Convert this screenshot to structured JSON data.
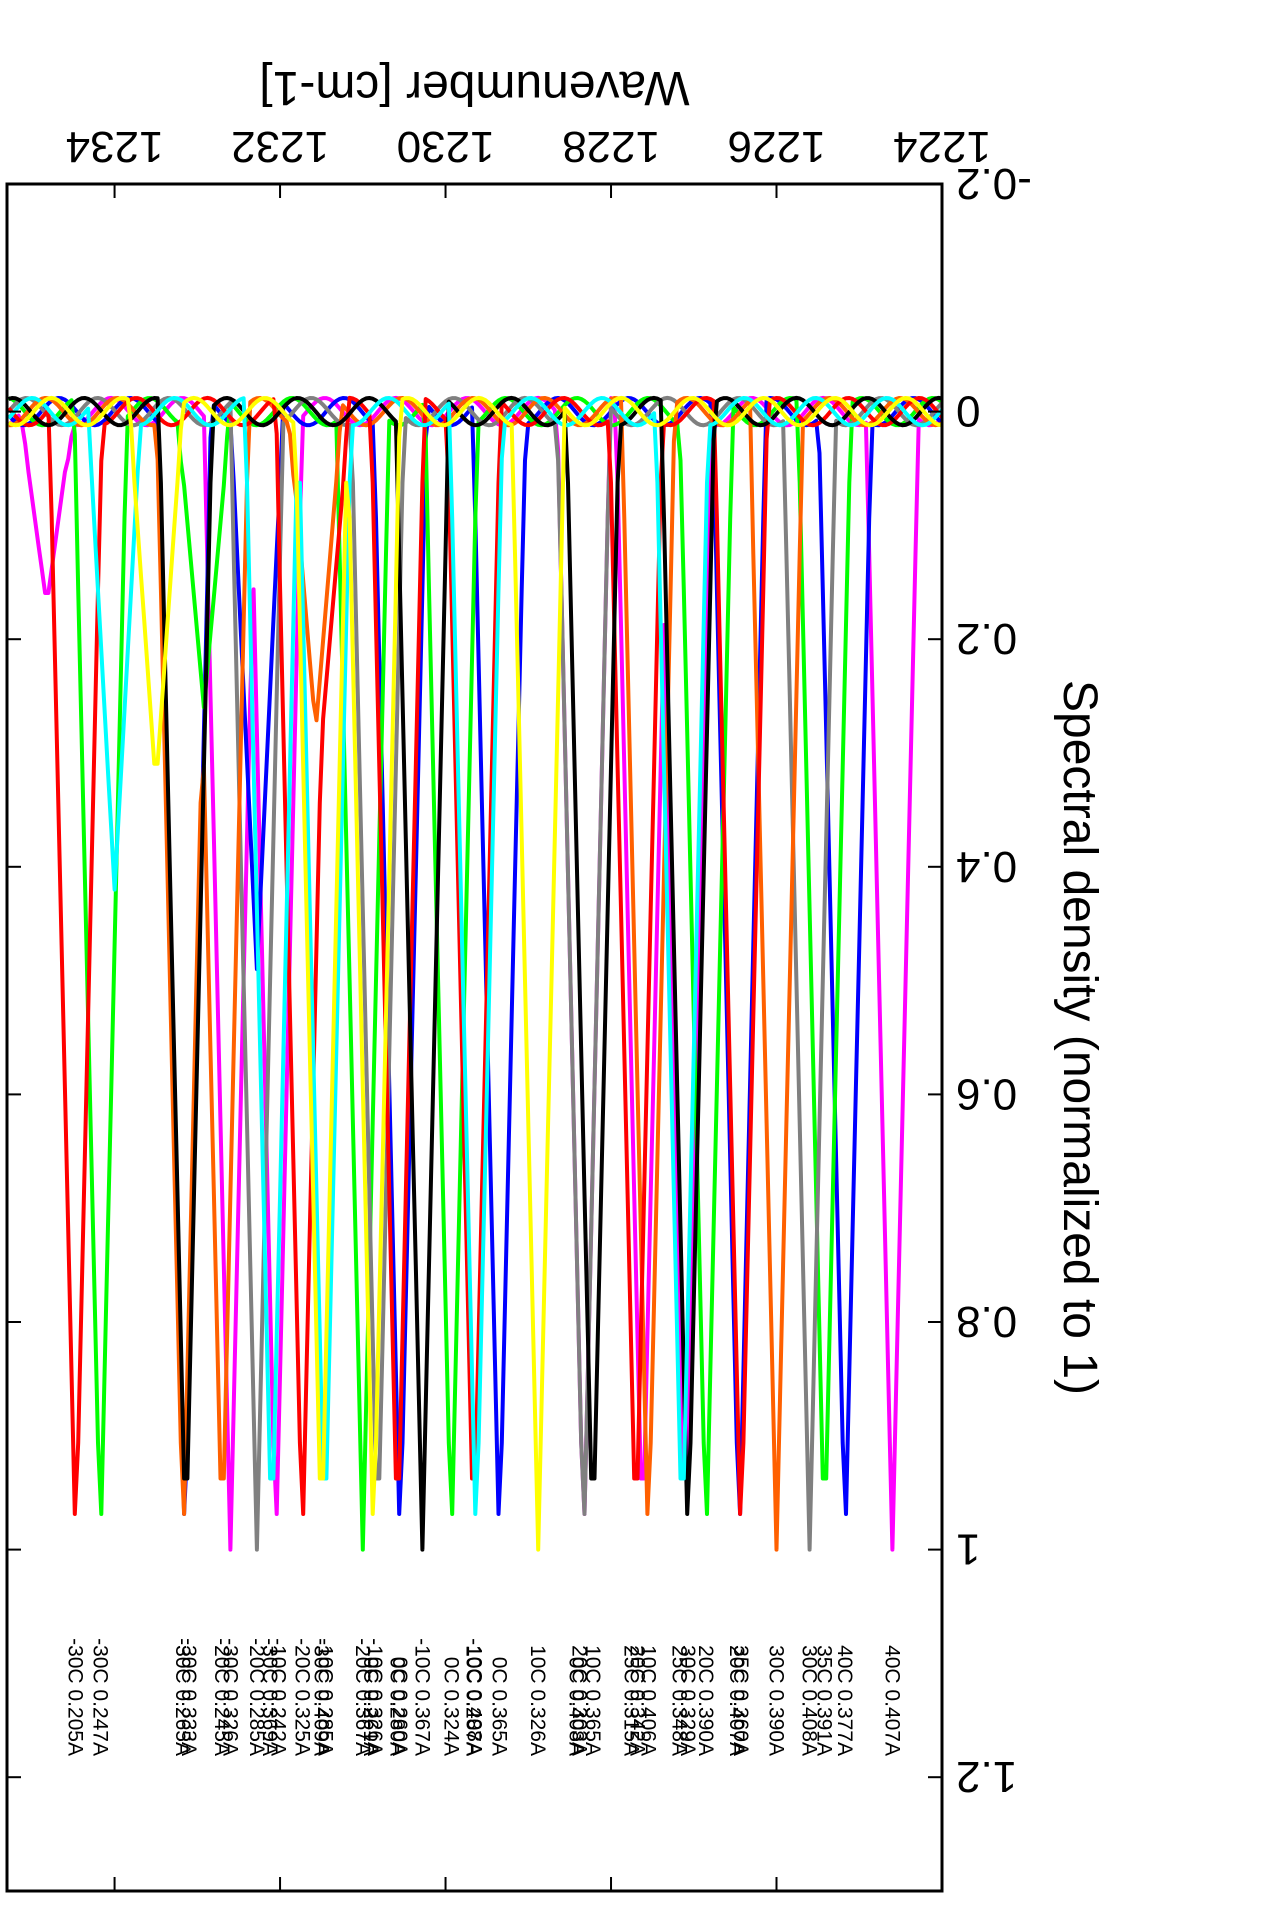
{
  "chart_data": {
    "type": "line",
    "xlabel": "Wavenumber [cm-1]",
    "ylabel": "Spectral density (normalized to 1)",
    "xlim": [
      1224,
      1235.3
    ],
    "ylim": [
      -0.2,
      1.3
    ],
    "x_ticks": [
      {
        "value": 1224,
        "label": "1224"
      },
      {
        "value": 1226,
        "label": "1226"
      },
      {
        "value": 1228,
        "label": "1228"
      },
      {
        "value": 1230,
        "label": "1230"
      },
      {
        "value": 1232,
        "label": "1232"
      },
      {
        "value": 1234,
        "label": "1234"
      }
    ],
    "y_ticks": [
      {
        "value": -0.2,
        "label": "-0.2"
      },
      {
        "value": 0,
        "label": "0"
      },
      {
        "value": 0.2,
        "label": "0.2"
      },
      {
        "value": 0.4,
        "label": "0.4"
      },
      {
        "value": 0.6,
        "label": "0.6"
      },
      {
        "value": 0.8,
        "label": "0.8"
      },
      {
        "value": 1,
        "label": "1"
      },
      {
        "value": 1.2,
        "label": "1.2"
      }
    ],
    "grid": false,
    "orientation": "rotated 90 degrees clockwise (upside-down reading)",
    "peak_width": 0.32,
    "series": [
      {
        "color": "#ff00ff",
        "peaks": [
          {
            "x": 1224.6,
            "label": "40C 0.407A"
          },
          {
            "x": 1227.1,
            "label": "25C 0.348A"
          },
          {
            "x": 1227.62,
            "label": "25C 0.315A"
          },
          {
            "x": 1228.33,
            "label": "0C 0.408A"
          },
          {
            "x": 1232.05,
            "label": "-10C 0.242A"
          },
          {
            "x": 1232.6,
            "label": "-30C 0.326A"
          }
        ]
      },
      {
        "color": "#0000ff",
        "peaks": [
          {
            "x": 1225.17,
            "label": "40C 0.377A"
          },
          {
            "x": 1226.45,
            "label": "20C 0.407A"
          },
          {
            "x": 1229.35,
            "label": "0C 0.365A"
          },
          {
            "x": 1230.55,
            "label": "0C 0.260A"
          },
          {
            "x": 1233.15,
            "label": "-30C 0.333A"
          }
        ]
      },
      {
        "color": "#00ff00",
        "peaks": [
          {
            "x": 1225.42,
            "label": "35C 0.391A"
          },
          {
            "x": 1226.85,
            "label": "20C 0.390A"
          },
          {
            "x": 1229.93,
            "label": "0C 0.324A"
          },
          {
            "x": 1231.0,
            "label": "-20C 0.367A"
          },
          {
            "x": 1234.17,
            "label": "-30C 0.247A"
          }
        ]
      },
      {
        "color": "#808080",
        "peaks": [
          {
            "x": 1225.6,
            "label": "30C 0.408A"
          },
          {
            "x": 1228.33,
            "label": "20C 0.303A"
          },
          {
            "x": 1230.82,
            "label": "0C 0.261A"
          },
          {
            "x": 1232.28,
            "label": "-20C 0.285A"
          }
        ]
      },
      {
        "color": "#ff6000",
        "peaks": [
          {
            "x": 1226.0,
            "label": "30C 0.390A"
          },
          {
            "x": 1227.55,
            "label": "10C 0.406A"
          },
          {
            "x": 1232.7,
            "label": "-20C 0.245A"
          },
          {
            "x": 1233.17,
            "label": "-30C 0.265A"
          }
        ]
      },
      {
        "color": "#ff0000",
        "peaks": [
          {
            "x": 1226.43,
            "label": "35C 0.360A"
          },
          {
            "x": 1227.7,
            "label": "20C 0.342A"
          },
          {
            "x": 1229.66,
            "label": "-10C 0.408A"
          },
          {
            "x": 1230.58,
            "label": "0C 0.280A"
          },
          {
            "x": 1231.73,
            "label": "-20C 0.325A"
          },
          {
            "x": 1234.47,
            "label": "-30C 0.205A"
          }
        ]
      },
      {
        "color": "#000000",
        "peaks": [
          {
            "x": 1227.07,
            "label": "30C 0.329A"
          },
          {
            "x": 1228.22,
            "label": "10C 0.365A"
          },
          {
            "x": 1230.28,
            "label": "-10C 0.367A"
          },
          {
            "x": 1233.14,
            "label": "-30C 0.333A"
          }
        ]
      },
      {
        "color": "#00ffff",
        "peaks": [
          {
            "x": 1227.14,
            "label": "25C 0.348A"
          },
          {
            "x": 1229.63,
            "label": "10C 0.287A"
          },
          {
            "x": 1231.46,
            "label": "-10C 0.285A"
          },
          {
            "x": 1232.1,
            "label": "-30C 0.369A"
          }
        ]
      },
      {
        "color": "#ffff00",
        "peaks": [
          {
            "x": 1228.88,
            "label": "10C 0.326A"
          },
          {
            "x": 1230.87,
            "label": "-10C 0.326A"
          },
          {
            "x": 1231.5,
            "label": "-30C 0.409A"
          }
        ]
      }
    ],
    "secondary_bumps": [
      {
        "color": "#ff00ff",
        "x": 1234.82,
        "y": 0.17
      },
      {
        "color": "#00ffff",
        "x": 1234.0,
        "y": 0.42
      },
      {
        "color": "#ffff00",
        "x": 1233.5,
        "y": 0.33
      },
      {
        "color": "#00ff00",
        "x": 1232.92,
        "y": 0.26
      },
      {
        "color": "#0000ff",
        "x": 1232.28,
        "y": 0.49
      },
      {
        "color": "#ff6000",
        "x": 1231.57,
        "y": 0.28
      },
      {
        "color": "#ff0000",
        "x": 1231.48,
        "y": 0.27
      }
    ],
    "labels_column": [
      {
        "x": 1224.6,
        "text": "40C 0.407A"
      },
      {
        "x": 1225.17,
        "text": "40C 0.377A"
      },
      {
        "x": 1225.42,
        "text": "35C 0.391A"
      },
      {
        "x": 1225.6,
        "text": "30C 0.408A"
      },
      {
        "x": 1226.0,
        "text": "30C 0.390A"
      },
      {
        "x": 1226.43,
        "text": "35C 0.360A"
      },
      {
        "x": 1226.48,
        "text": "20C 0.407A"
      },
      {
        "x": 1226.85,
        "text": "20C 0.390A"
      },
      {
        "x": 1227.07,
        "text": "30C 0.329A"
      },
      {
        "x": 1227.17,
        "text": "25C 0.348A"
      },
      {
        "x": 1227.55,
        "text": "10C 0.406A"
      },
      {
        "x": 1227.68,
        "text": "20C 0.342A"
      },
      {
        "x": 1227.75,
        "text": "25C 0.315A"
      },
      {
        "x": 1228.22,
        "text": "10C 0.365A"
      },
      {
        "x": 1228.38,
        "text": "20C 0.303A"
      },
      {
        "x": 1228.42,
        "text": "0C 0.408A"
      },
      {
        "x": 1228.88,
        "text": "10C 0.326A"
      },
      {
        "x": 1229.35,
        "text": "0C 0.365A"
      },
      {
        "x": 1229.65,
        "text": "-10C 0.408A"
      },
      {
        "x": 1229.66,
        "text": "10C 0.287A"
      },
      {
        "x": 1229.93,
        "text": "0C 0.324A"
      },
      {
        "x": 1230.28,
        "text": "-10C 0.367A"
      },
      {
        "x": 1230.55,
        "text": "0C 0.260A"
      },
      {
        "x": 1230.58,
        "text": "0C 0.280A"
      },
      {
        "x": 1230.85,
        "text": "-10C 0.326A"
      },
      {
        "x": 1230.9,
        "text": "0C 0.261A"
      },
      {
        "x": 1231.0,
        "text": "-20C 0.367A"
      },
      {
        "x": 1231.45,
        "text": "-10C 0.285A"
      },
      {
        "x": 1231.5,
        "text": "-30C 0.409A"
      },
      {
        "x": 1231.73,
        "text": "-20C 0.325A"
      },
      {
        "x": 1232.02,
        "text": "-10C 0.242A"
      },
      {
        "x": 1232.12,
        "text": "-30C 0.369A"
      },
      {
        "x": 1232.28,
        "text": "-20C 0.285A"
      },
      {
        "x": 1232.6,
        "text": "-30C 0.326A"
      },
      {
        "x": 1232.7,
        "text": "-20C 0.245A"
      },
      {
        "x": 1233.1,
        "text": "-30C 0.333A"
      },
      {
        "x": 1233.17,
        "text": "-30C 0.265A"
      },
      {
        "x": 1234.17,
        "text": "-30C 0.247A"
      },
      {
        "x": 1234.47,
        "text": "-30C 0.205A"
      }
    ]
  }
}
